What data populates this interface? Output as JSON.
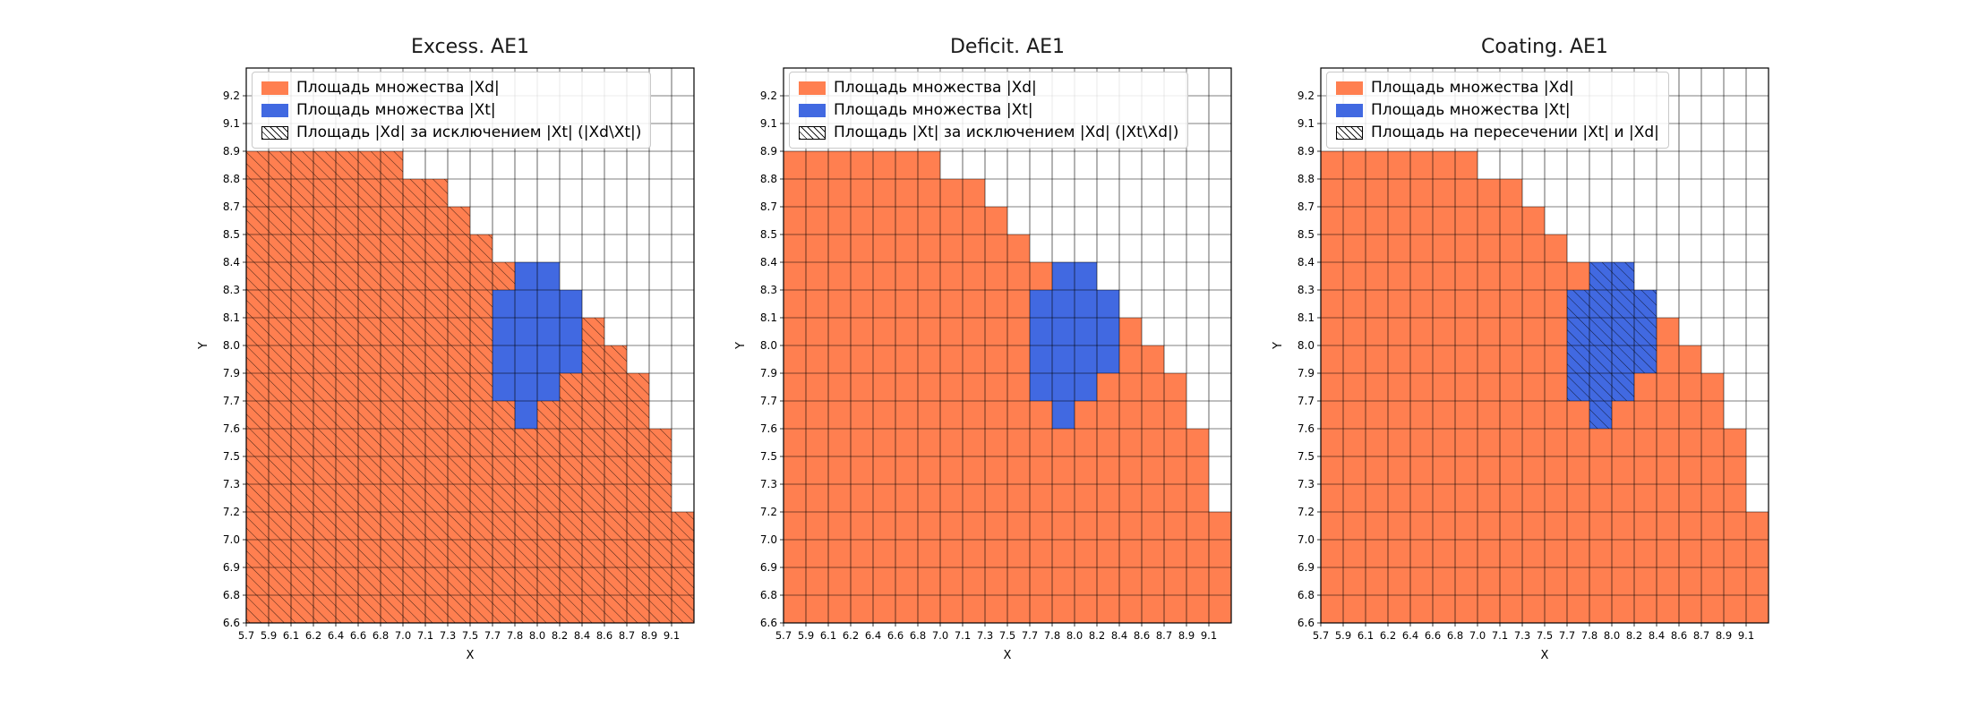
{
  "chart_data": {
    "type": "heatmap",
    "xlabel": "X",
    "ylabel": "Y",
    "grid": {
      "cols": 20,
      "rows": 20
    },
    "x_tick_labels": [
      "5.7",
      "5.9",
      "6.1",
      "6.2",
      "6.4",
      "6.6",
      "6.8",
      "7.0",
      "7.1",
      "7.3",
      "7.5",
      "7.7",
      "7.8",
      "8.0",
      "8.2",
      "8.4",
      "8.6",
      "8.7",
      "8.9",
      "9.1"
    ],
    "y_tick_labels": [
      "6.6",
      "6.8",
      "6.9",
      "7.0",
      "7.2",
      "7.3",
      "7.5",
      "7.6",
      "7.7",
      "7.9",
      "8.0",
      "8.1",
      "8.3",
      "8.4",
      "8.5",
      "8.7",
      "8.8",
      "8.9",
      "9.1",
      "9.2"
    ],
    "colors": {
      "xd": "#FF7F50",
      "xt": "#4169E1",
      "grid": "#000000",
      "hatch": "#000000"
    },
    "xd_column_heights": [
      17,
      17,
      17,
      17,
      17,
      17,
      17,
      16,
      16,
      15,
      14,
      13,
      13,
      13,
      12,
      11,
      10,
      9,
      7,
      4
    ],
    "xt_cells": [
      [
        11,
        8
      ],
      [
        11,
        9
      ],
      [
        11,
        10
      ],
      [
        11,
        11
      ],
      [
        12,
        7
      ],
      [
        12,
        8
      ],
      [
        12,
        9
      ],
      [
        12,
        10
      ],
      [
        12,
        11
      ],
      [
        12,
        12
      ],
      [
        13,
        8
      ],
      [
        13,
        9
      ],
      [
        13,
        10
      ],
      [
        13,
        11
      ],
      [
        13,
        12
      ],
      [
        14,
        9
      ],
      [
        14,
        10
      ],
      [
        14,
        11
      ]
    ],
    "charts": [
      {
        "title": "Excess. AE1",
        "hatch_region": "xd_minus_xt",
        "legend": [
          {
            "swatch": "xd",
            "label": "Площадь множества |Xd|"
          },
          {
            "swatch": "xt",
            "label": "Площадь множества  |Xt|"
          },
          {
            "swatch": "hatch",
            "label": "Площадь |Xd| за исключением |Xt| (|Xd\\Xt|)"
          }
        ]
      },
      {
        "title": "Deficit. AE1",
        "hatch_region": "none",
        "legend": [
          {
            "swatch": "xd",
            "label": "Площадь множества |Xd|"
          },
          {
            "swatch": "xt",
            "label": "Площадь множества  |Xt|"
          },
          {
            "swatch": "hatch",
            "label": "Площадь |Xt| за исключением |Xd| (|Xt\\Xd|)"
          }
        ]
      },
      {
        "title": "Coating. AE1",
        "hatch_region": "xt_intersect_xd",
        "legend": [
          {
            "swatch": "xd",
            "label": "Площадь множества |Xd|"
          },
          {
            "swatch": "xt",
            "label": "Площадь множества  |Xt|"
          },
          {
            "swatch": "hatch",
            "label": "Площадь на пересечении |Xt| и |Xd|"
          }
        ]
      }
    ]
  }
}
